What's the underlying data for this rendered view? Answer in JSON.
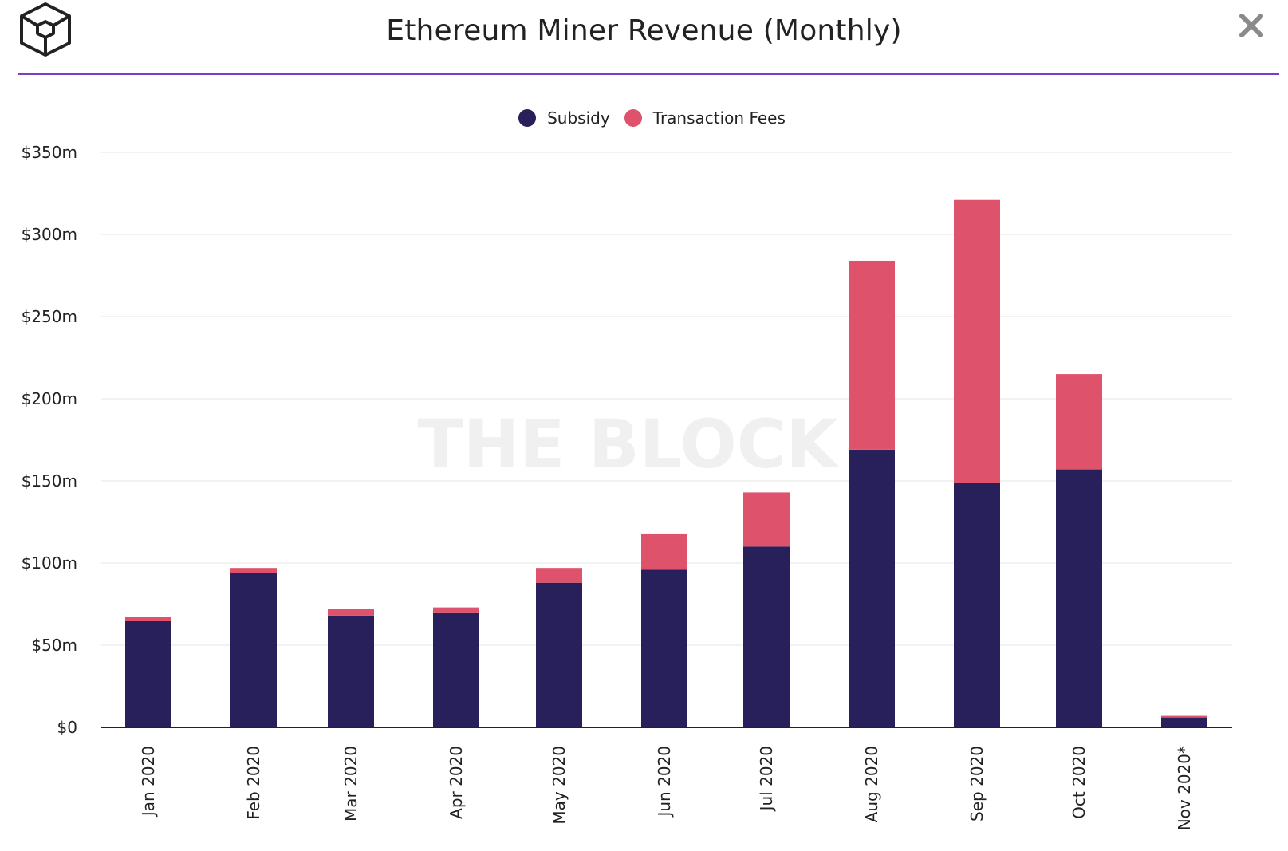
{
  "header": {
    "title": "Ethereum Miner Revenue (Monthly)",
    "logo_icon": "the-block-cube-logo",
    "close_icon": "close-icon"
  },
  "colors": {
    "subsidy": "#27205a",
    "fees": "#df526b",
    "accent_line": "#7a3fc6",
    "grid": "#e6e6e6",
    "axis": "#222222"
  },
  "watermark": "THE BLOCK",
  "chart_data": {
    "type": "bar",
    "stacked": true,
    "title": "Ethereum Miner Revenue (Monthly)",
    "xlabel": "",
    "ylabel": "",
    "categories": [
      "Jan 2020",
      "Feb 2020",
      "Mar 2020",
      "Apr 2020",
      "May 2020",
      "Jun 2020",
      "Jul 2020",
      "Aug 2020",
      "Sep 2020",
      "Oct 2020",
      "Nov 2020*"
    ],
    "series": [
      {
        "name": "Subsidy",
        "color": "#27205a",
        "values": [
          65,
          94,
          68,
          70,
          88,
          96,
          110,
          169,
          149,
          157,
          6
        ]
      },
      {
        "name": "Transaction Fees",
        "color": "#df526b",
        "values": [
          2,
          3,
          4,
          3,
          9,
          22,
          33,
          115,
          172,
          58,
          1
        ]
      }
    ],
    "ylim": [
      0,
      350
    ],
    "yticks": [
      0,
      50,
      100,
      150,
      200,
      250,
      300,
      350
    ],
    "ytick_labels": [
      "$0",
      "$50m",
      "$100m",
      "$150m",
      "$200m",
      "$250m",
      "$300m",
      "$350m"
    ],
    "grid": true,
    "legend_position": "top-center"
  }
}
